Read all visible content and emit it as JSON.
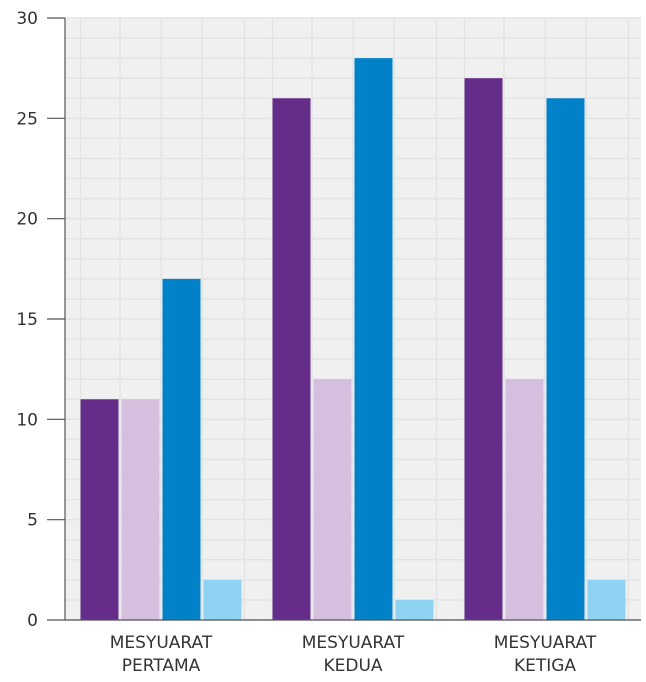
{
  "chart_data": {
    "type": "bar",
    "categories": [
      [
        "MESYUARAT",
        "PERTAMA"
      ],
      [
        "MESYUARAT",
        "KEDUA"
      ],
      [
        "MESYUARAT",
        "KETIGA"
      ]
    ],
    "series": [
      {
        "values": [
          11,
          26,
          27
        ],
        "color": "#652d89"
      },
      {
        "values": [
          11,
          12,
          12
        ],
        "color": "#d4bfdf"
      },
      {
        "values": [
          17,
          28,
          26
        ],
        "color": "#0081c8"
      },
      {
        "values": [
          2,
          1,
          2
        ],
        "color": "#8fd3f3"
      }
    ],
    "ylim": [
      0,
      30
    ],
    "yticks": [
      0,
      5,
      10,
      15,
      20,
      25,
      30
    ],
    "grid": true,
    "grid_color": "#e4e4e4",
    "plot_background": "#f0f0f0",
    "title": "",
    "xlabel": "",
    "ylabel": ""
  }
}
